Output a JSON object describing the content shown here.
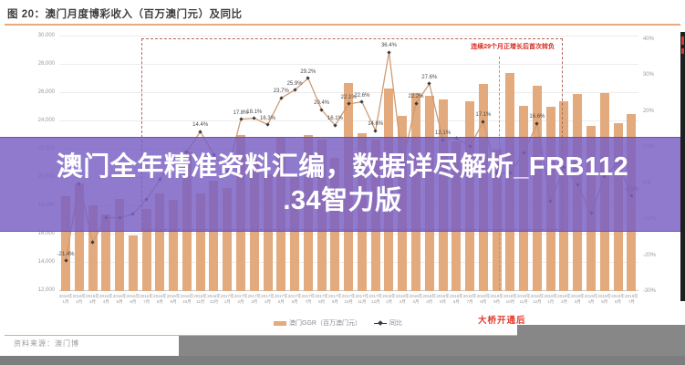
{
  "header": {
    "title": "图 20：澳门月度博彩收入（百万澳门元）及同比"
  },
  "banner": {
    "line1": "澳门全年精准资料汇编，数据详尽解析_FRB112",
    "line2": ".34智力版"
  },
  "annotations": {
    "box_label": "连续29个月正增长后首次转负",
    "bridge_label": "大桥开通后"
  },
  "legend": {
    "bar_label": "澳门GGR（百万澳门元）",
    "line_label": "同比"
  },
  "footer": {
    "source": "资料来源：澳门博"
  },
  "colors": {
    "bar": "#e2aa7d",
    "line": "#cf9b74",
    "marker": "#3a3a3a",
    "banner_purple": "#7a61c5",
    "accent_orange": "#e9ab7d",
    "annotation_red": "#d6281e"
  },
  "chart_data": {
    "type": "bar+line",
    "title": "澳门月度博彩收入（百万澳门元）及同比",
    "categories": [
      "2016年1月",
      "2016年2月",
      "2016年3月",
      "2016年4月",
      "2016年5月",
      "2016年6月",
      "2016年7月",
      "2016年8月",
      "2016年9月",
      "2016年10月",
      "2016年11月",
      "2016年12月",
      "2017年1月",
      "2017年2月",
      "2017年3月",
      "2017年4月",
      "2017年5月",
      "2017年6月",
      "2017年7月",
      "2017年8月",
      "2017年9月",
      "2017年10月",
      "2017年11月",
      "2017年12月",
      "2018年1月",
      "2018年2月",
      "2018年3月",
      "2018年4月",
      "2018年5月",
      "2018年6月",
      "2018年7月",
      "2018年8月",
      "2018年9月",
      "2018年10月",
      "2018年11月",
      "2018年12月",
      "2019年1月",
      "2019年2月",
      "2019年3月",
      "2019年4月",
      "2019年5月",
      "2019年6月",
      "2019年7月"
    ],
    "series": [
      {
        "name": "澳门GGR（百万澳门元）",
        "type": "bar",
        "values": [
          18674,
          19519,
          17980,
          17340,
          18443,
          15885,
          17759,
          18837,
          18401,
          21818,
          18826,
          19743,
          19255,
          22988,
          21235,
          20164,
          22744,
          19992,
          22964,
          22676,
          21355,
          26630,
          23080,
          22624,
          26266,
          24312,
          25952,
          25727,
          25488,
          22490,
          25327,
          26560,
          21952,
          27328,
          25039,
          26468,
          24942,
          25370,
          25840,
          23588,
          25952,
          23812,
          24453
        ]
      },
      {
        "name": "同比",
        "type": "line",
        "unit": "%",
        "values": [
          -21.4,
          -0.1,
          -16.3,
          -9.5,
          -9.6,
          -8.5,
          -4.5,
          1.1,
          7.4,
          8.8,
          14.4,
          8.0,
          3.1,
          17.8,
          18.1,
          16.3,
          23.7,
          25.9,
          29.2,
          20.4,
          16.1,
          22.1,
          22.6,
          14.6,
          36.4,
          5.7,
          22.2,
          27.6,
          12.1,
          12.5,
          10.3,
          17.1,
          2.8,
          2.9,
          8.5,
          16.6,
          -5.0,
          4.4,
          -0.4,
          -8.3,
          1.8,
          5.9,
          -3.5
        ]
      }
    ],
    "labeled_points": [
      0,
      10,
      13,
      14,
      15,
      16,
      17,
      18,
      19,
      20,
      21,
      22,
      23,
      24,
      26,
      27,
      28,
      31,
      35,
      42
    ],
    "left_axis": {
      "min": 12000,
      "max": 30000,
      "step": 2000
    },
    "right_axis": {
      "min": -30,
      "max": 40,
      "step": 10,
      "unit": "%"
    },
    "grid": true,
    "legend_position": "bottom"
  }
}
